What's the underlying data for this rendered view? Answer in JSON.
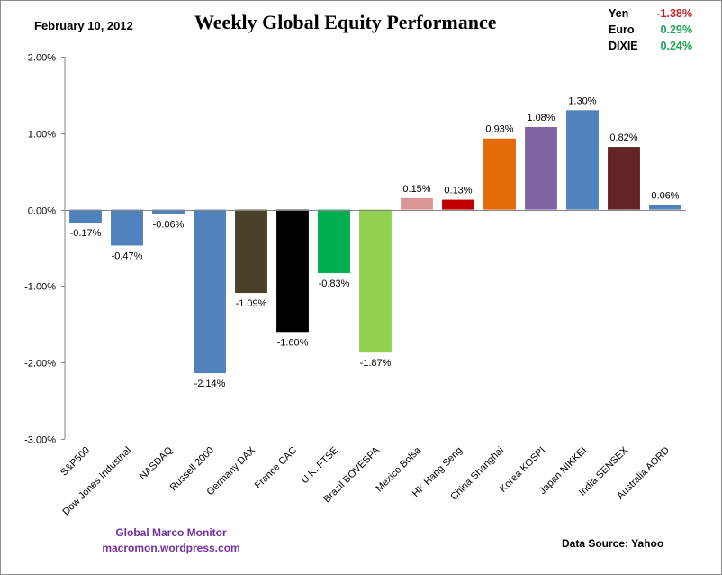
{
  "header": {
    "date": "February 10, 2012",
    "title": "Weekly Global Equity Performance"
  },
  "currencies": [
    {
      "name": "Yen",
      "value": "-1.38%",
      "color": "#c0272d"
    },
    {
      "name": "Euro",
      "value": "0.29%",
      "color": "#21a456"
    },
    {
      "name": "DIXIE",
      "value": "0.24%",
      "color": "#21a456"
    }
  ],
  "footer": {
    "brand_line1": "Global  Marco  Monitor",
    "brand_line2": "macromon.wordpress.com",
    "source": "Data Source:    Yahoo"
  },
  "chart_data": {
    "type": "bar",
    "title": "Weekly Global Equity Performance",
    "xlabel": "",
    "ylabel": "",
    "ylim": [
      -3.0,
      2.0
    ],
    "yticks": [
      2.0,
      1.0,
      0.0,
      -1.0,
      -2.0,
      -3.0
    ],
    "ytick_labels": [
      "2.00%",
      "1.00%",
      "0.00%",
      "-1.00%",
      "-2.00%",
      "-3.00%"
    ],
    "grid": false,
    "legend": "none",
    "categories": [
      "S&P500",
      "Dow Jones Industrial",
      "NASDAQ",
      "Russell 2000",
      "Germany DAX",
      "France CAC",
      "U.K. FTSE",
      "Brazil BOVESPA",
      "Mexico Bolsa",
      "HK  Hang Seng",
      "China Shanghai",
      "Korea KOSPI",
      "Japan NIKKEI",
      "India SENSEX",
      "Australia AORD"
    ],
    "values": [
      -0.17,
      -0.47,
      -0.06,
      -2.14,
      -1.09,
      -1.6,
      -0.83,
      -1.87,
      0.15,
      0.13,
      0.93,
      1.08,
      1.3,
      0.82,
      0.06
    ],
    "data_labels": [
      "-0.17%",
      "-0.47%",
      "-0.06%",
      "-2.14%",
      "-1.09%",
      "-1.60%",
      "-0.83%",
      "-1.87%",
      "0.15%",
      "0.13%",
      "0.93%",
      "1.08%",
      "1.30%",
      "0.82%",
      "0.06%"
    ],
    "colors": [
      "#4f81bd",
      "#4f81bd",
      "#4f81bd",
      "#4f81bd",
      "#4a412a",
      "#000000",
      "#00b050",
      "#92d050",
      "#da9694",
      "#c00000",
      "#e36c09",
      "#8064a2",
      "#4f81bd",
      "#632523",
      "#4f81bd"
    ]
  }
}
